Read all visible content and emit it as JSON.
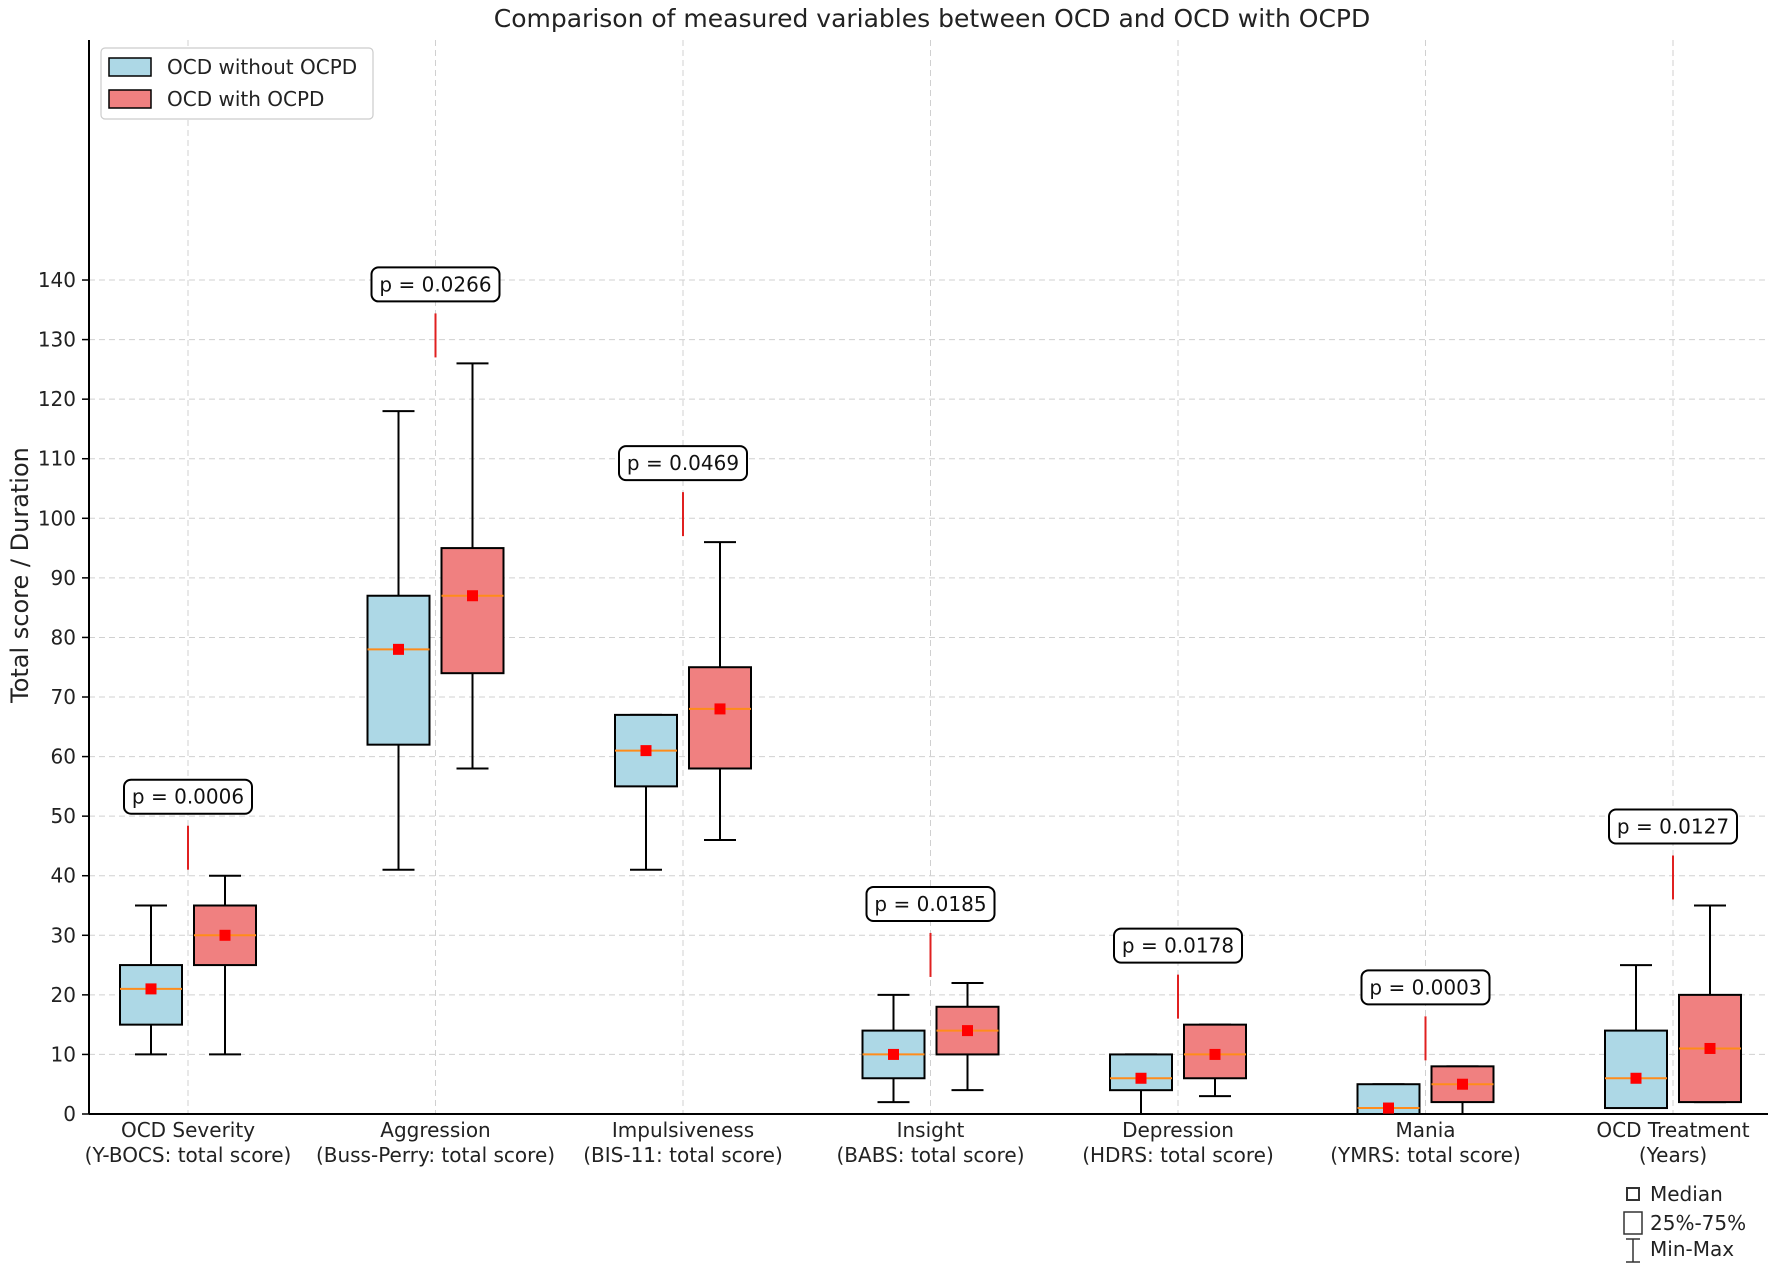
{
  "chart_data": {
    "type": "box",
    "title": "Comparison of measured variables between OCD and OCD with OCPD",
    "ylabel": "Total score / Duration",
    "xlabel": "",
    "ylim": [
      0,
      180
    ],
    "yticks": [
      0,
      10,
      20,
      30,
      40,
      50,
      60,
      70,
      80,
      90,
      100,
      110,
      120,
      130,
      140
    ],
    "grid": true,
    "legend_position": "top-left",
    "colors": {
      "without": "#add8e6",
      "with": "#f08080",
      "median_line": "#ff8c1a",
      "median_marker": "#ff0000",
      "p_line": "#e02020"
    },
    "series": [
      {
        "name": "OCD without OCPD",
        "key": "without"
      },
      {
        "name": "OCD with OCPD",
        "key": "with"
      }
    ],
    "categories": [
      {
        "line1": "OCD Severity",
        "line2": "(Y-BOCS: total score)",
        "p": "p = 0.0006",
        "without": {
          "min": 10,
          "q1": 15,
          "median": 21,
          "q3": 25,
          "max": 35
        },
        "with": {
          "min": 10,
          "q1": 25,
          "median": 30,
          "q3": 35,
          "max": 40
        }
      },
      {
        "line1": "Aggression",
        "line2": "(Buss-Perry: total score)",
        "p": "p = 0.0266",
        "without": {
          "min": 41,
          "q1": 62,
          "median": 78,
          "q3": 87,
          "max": 118
        },
        "with": {
          "min": 58,
          "q1": 74,
          "median": 87,
          "q3": 95,
          "max": 126
        }
      },
      {
        "line1": "Impulsiveness",
        "line2": "(BIS-11: total score)",
        "p": "p = 0.0469",
        "without": {
          "min": 41,
          "q1": 55,
          "median": 61,
          "q3": 67,
          "max": 67
        },
        "with": {
          "min": 46,
          "q1": 58,
          "median": 68,
          "q3": 75,
          "max": 96
        }
      },
      {
        "line1": "Insight",
        "line2": "(BABS: total score)",
        "p": "p = 0.0185",
        "without": {
          "min": 2,
          "q1": 6,
          "median": 10,
          "q3": 14,
          "max": 20
        },
        "with": {
          "min": 4,
          "q1": 10,
          "median": 14,
          "q3": 18,
          "max": 22
        }
      },
      {
        "line1": "Depression",
        "line2": "(HDRS: total score)",
        "p": "p = 0.0178",
        "without": {
          "min": 0,
          "q1": 4,
          "median": 6,
          "q3": 10,
          "max": 10
        },
        "with": {
          "min": 3,
          "q1": 6,
          "median": 10,
          "q3": 15,
          "max": 15
        }
      },
      {
        "line1": "Mania",
        "line2": "(YMRS: total score)",
        "p": "p = 0.0003",
        "without": {
          "min": 0,
          "q1": 0,
          "median": 1,
          "q3": 5,
          "max": 5
        },
        "with": {
          "min": 0,
          "q1": 2,
          "median": 5,
          "q3": 8,
          "max": 8
        }
      },
      {
        "line1": "OCD Treatment",
        "line2": "(Years)",
        "p": "p = 0.0127",
        "without": {
          "min": 1,
          "q1": 1,
          "median": 6,
          "q3": 14,
          "max": 25
        },
        "with": {
          "min": 2,
          "q1": 2,
          "median": 11,
          "q3": 20,
          "max": 35
        }
      }
    ],
    "key": {
      "median": "Median",
      "iqr": "25%-75%",
      "range": "Min-Max"
    }
  }
}
